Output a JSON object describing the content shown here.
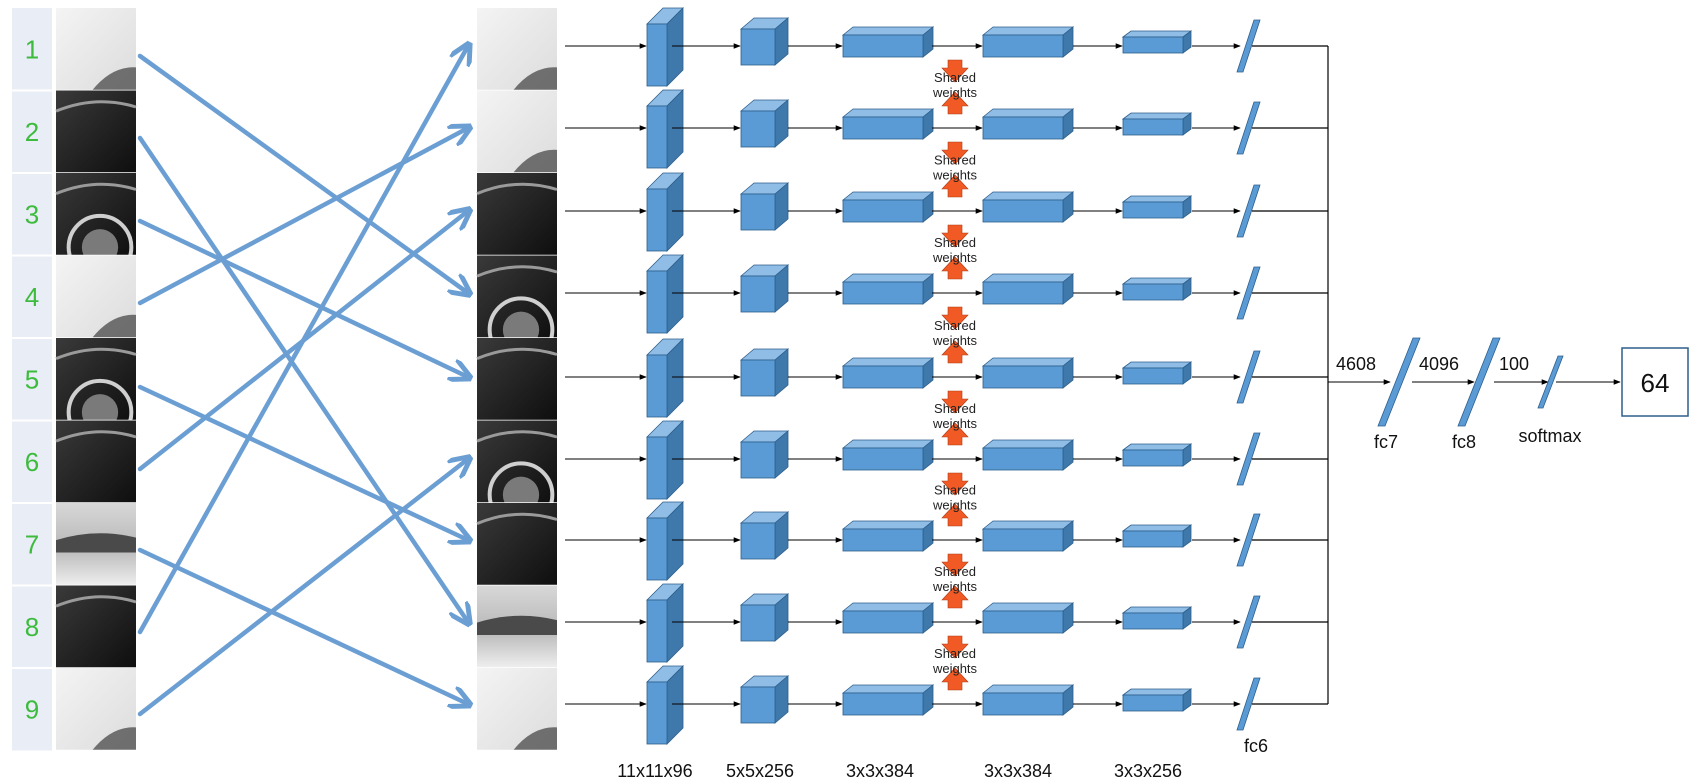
{
  "input_tiles": [
    "1",
    "2",
    "3",
    "4",
    "5",
    "6",
    "7",
    "8",
    "9"
  ],
  "permutation": [
    4,
    8,
    5,
    2,
    7,
    3,
    9,
    1,
    6
  ],
  "shared_label_line1": "Shared",
  "shared_label_line2": "weights",
  "layer_dims": [
    "11x11x96",
    "5x5x256",
    "3x3x384",
    "3x3x384",
    "3x3x256"
  ],
  "fc6_label": "fc6",
  "fc_layers": [
    {
      "name": "fc7",
      "in_size": "4608"
    },
    {
      "name": "fc8",
      "in_size": "4096"
    },
    {
      "name": "softmax",
      "in_size": "100"
    }
  ],
  "output_value": "64",
  "colors": {
    "block_front": "#5b9bd5",
    "block_top": "#8fbde6",
    "block_side": "#3f78ab",
    "block_edge": "#2e5f8c",
    "permutation_arrow": "#6b9fd3",
    "shared_arrow": "#f15a24",
    "tile_label": "#3dbb3d",
    "label_bg": "#e8edf6"
  },
  "icons": [
    "car-photo-tile"
  ]
}
